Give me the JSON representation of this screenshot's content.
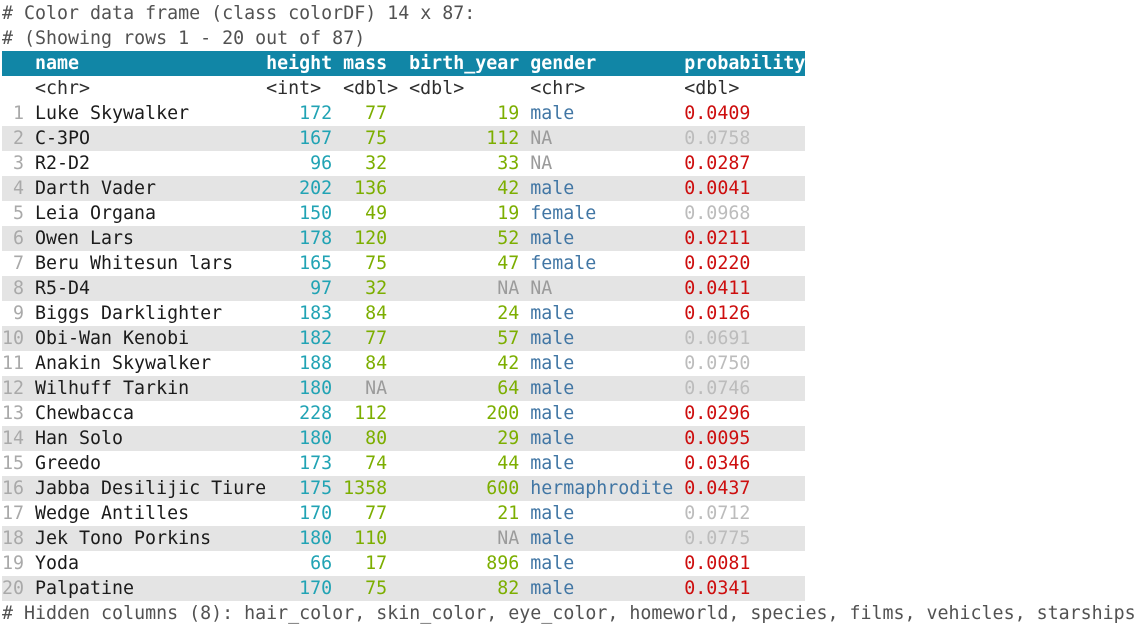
{
  "meta": {
    "title_line": "# Color data frame (class colorDF) 14 x 87:",
    "rows_line": "# (Showing rows 1 - 20 out of 87)",
    "hidden_line": "# Hidden columns (8): hair_color, skin_color, eye_color, homeworld, species, films, vehicles, starships"
  },
  "colors": {
    "header_bg": "#1186a6",
    "header_text": "#ffffff",
    "stripe_bg": "#e4e4e4",
    "comment_text": "#525252",
    "type_text": "#2e2e2e",
    "row_number": "#a9a9a9",
    "name_text": "#1b1b1b",
    "height_text": "#21a3b4",
    "mass_text": "#7cae00",
    "birth_year_text": "#7cae00",
    "gender_text": "#4176a4",
    "na_text": "#9b9b9b",
    "prob_red": "#cd0e0e",
    "prob_dim": "#bcbcbc"
  },
  "table": {
    "columns": [
      {
        "key": "n",
        "label": "",
        "type": ""
      },
      {
        "key": "name",
        "label": "name",
        "type": "<chr>"
      },
      {
        "key": "height",
        "label": "height",
        "type": "<int>"
      },
      {
        "key": "mass",
        "label": "mass",
        "type": "<dbl>"
      },
      {
        "key": "birth_year",
        "label": "birth_year",
        "type": "<dbl>"
      },
      {
        "key": "gender",
        "label": "gender",
        "type": "<chr>"
      },
      {
        "key": "probability",
        "label": "probability",
        "type": "<dbl>"
      }
    ],
    "rows": [
      {
        "n": "1",
        "name": "Luke Skywalker",
        "height": "172",
        "mass": "77",
        "birth_year": "19",
        "gender": "male",
        "probability": "0.0409",
        "prob_style": "red"
      },
      {
        "n": "2",
        "name": "C-3PO",
        "height": "167",
        "mass": "75",
        "birth_year": "112",
        "gender": "NA",
        "probability": "0.0758",
        "prob_style": "dim"
      },
      {
        "n": "3",
        "name": "R2-D2",
        "height": "96",
        "mass": "32",
        "birth_year": "33",
        "gender": "NA",
        "probability": "0.0287",
        "prob_style": "red"
      },
      {
        "n": "4",
        "name": "Darth Vader",
        "height": "202",
        "mass": "136",
        "birth_year": "42",
        "gender": "male",
        "probability": "0.0041",
        "prob_style": "red"
      },
      {
        "n": "5",
        "name": "Leia Organa",
        "height": "150",
        "mass": "49",
        "birth_year": "19",
        "gender": "female",
        "probability": "0.0968",
        "prob_style": "dim"
      },
      {
        "n": "6",
        "name": "Owen Lars",
        "height": "178",
        "mass": "120",
        "birth_year": "52",
        "gender": "male",
        "probability": "0.0211",
        "prob_style": "red"
      },
      {
        "n": "7",
        "name": "Beru Whitesun lars",
        "height": "165",
        "mass": "75",
        "birth_year": "47",
        "gender": "female",
        "probability": "0.0220",
        "prob_style": "red"
      },
      {
        "n": "8",
        "name": "R5-D4",
        "height": "97",
        "mass": "32",
        "birth_year": "NA",
        "gender": "NA",
        "probability": "0.0411",
        "prob_style": "red"
      },
      {
        "n": "9",
        "name": "Biggs Darklighter",
        "height": "183",
        "mass": "84",
        "birth_year": "24",
        "gender": "male",
        "probability": "0.0126",
        "prob_style": "red"
      },
      {
        "n": "10",
        "name": "Obi-Wan Kenobi",
        "height": "182",
        "mass": "77",
        "birth_year": "57",
        "gender": "male",
        "probability": "0.0691",
        "prob_style": "dim"
      },
      {
        "n": "11",
        "name": "Anakin Skywalker",
        "height": "188",
        "mass": "84",
        "birth_year": "42",
        "gender": "male",
        "probability": "0.0750",
        "prob_style": "dim"
      },
      {
        "n": "12",
        "name": "Wilhuff Tarkin",
        "height": "180",
        "mass": "NA",
        "birth_year": "64",
        "gender": "male",
        "probability": "0.0746",
        "prob_style": "dim"
      },
      {
        "n": "13",
        "name": "Chewbacca",
        "height": "228",
        "mass": "112",
        "birth_year": "200",
        "gender": "male",
        "probability": "0.0296",
        "prob_style": "red"
      },
      {
        "n": "14",
        "name": "Han Solo",
        "height": "180",
        "mass": "80",
        "birth_year": "29",
        "gender": "male",
        "probability": "0.0095",
        "prob_style": "red"
      },
      {
        "n": "15",
        "name": "Greedo",
        "height": "173",
        "mass": "74",
        "birth_year": "44",
        "gender": "male",
        "probability": "0.0346",
        "prob_style": "red"
      },
      {
        "n": "16",
        "name": "Jabba Desilijic Tiure",
        "height": "175",
        "mass": "1358",
        "birth_year": "600",
        "gender": "hermaphrodite",
        "probability": "0.0437",
        "prob_style": "red"
      },
      {
        "n": "17",
        "name": "Wedge Antilles",
        "height": "170",
        "mass": "77",
        "birth_year": "21",
        "gender": "male",
        "probability": "0.0712",
        "prob_style": "dim"
      },
      {
        "n": "18",
        "name": "Jek Tono Porkins",
        "height": "180",
        "mass": "110",
        "birth_year": "NA",
        "gender": "male",
        "probability": "0.0775",
        "prob_style": "dim"
      },
      {
        "n": "19",
        "name": "Yoda",
        "height": "66",
        "mass": "17",
        "birth_year": "896",
        "gender": "male",
        "probability": "0.0081",
        "prob_style": "red"
      },
      {
        "n": "20",
        "name": "Palpatine",
        "height": "170",
        "mass": "75",
        "birth_year": "82",
        "gender": "male",
        "probability": "0.0341",
        "prob_style": "red"
      }
    ]
  }
}
